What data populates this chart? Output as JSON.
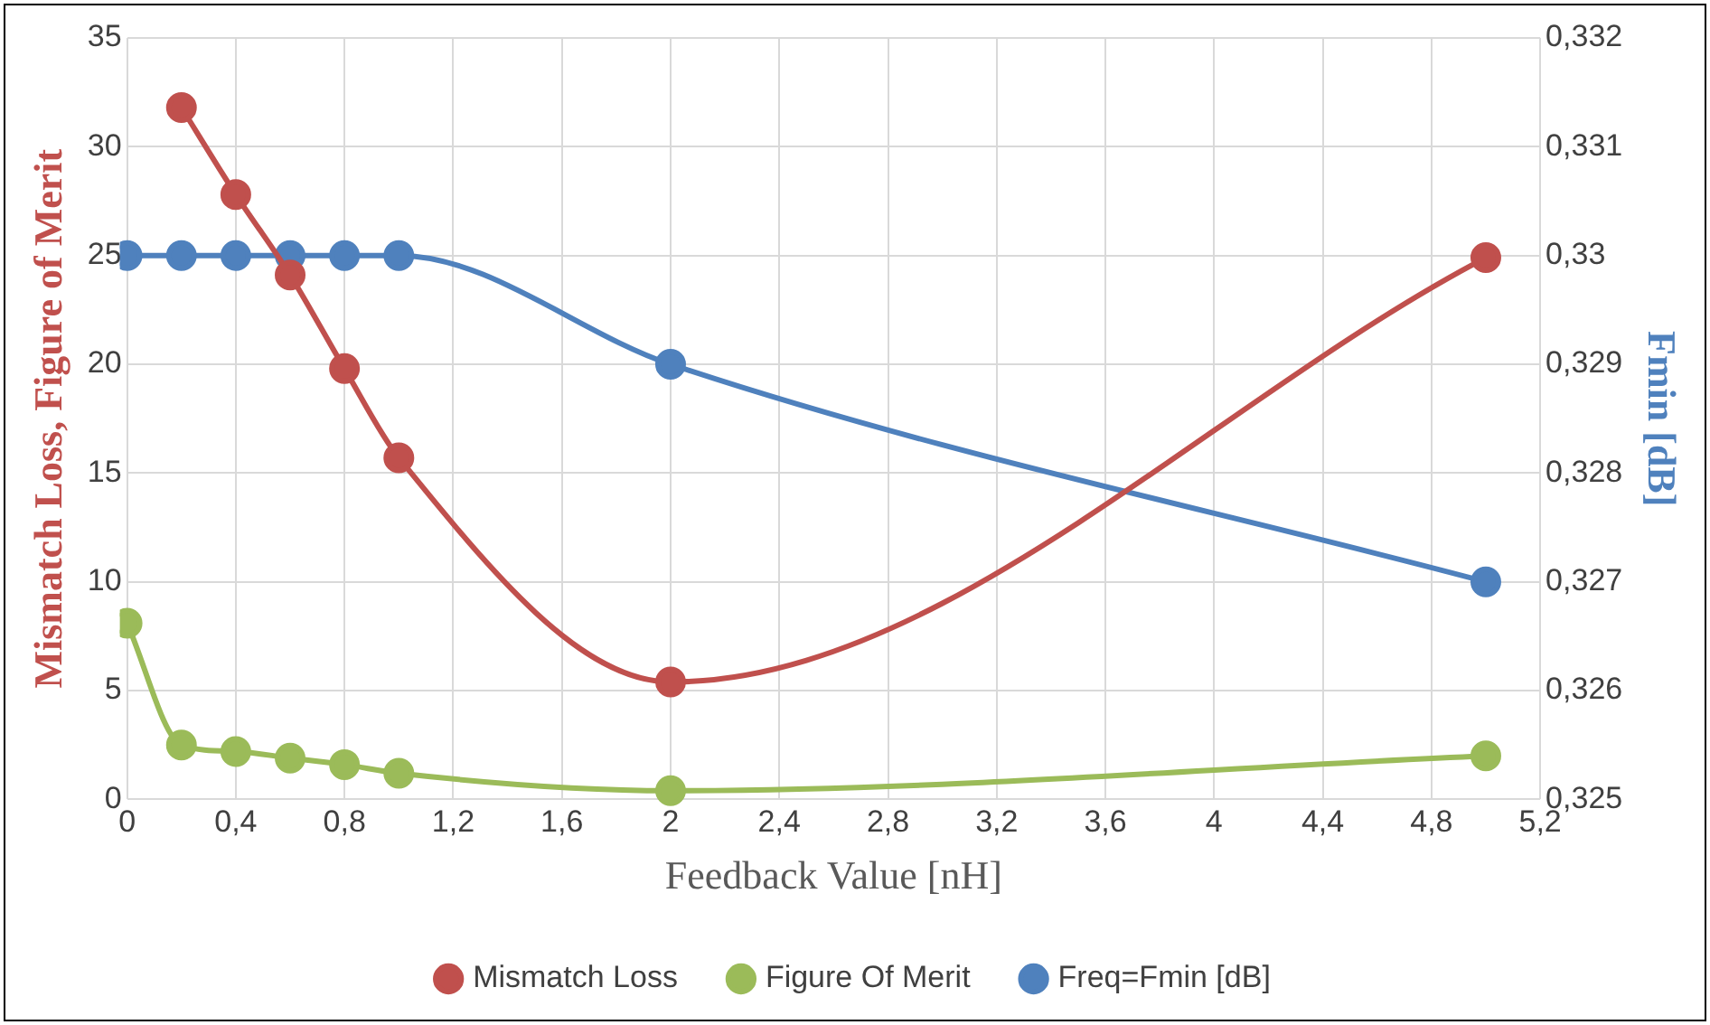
{
  "chart_data": {
    "type": "line",
    "xlabel": "Feedback Value [nH]",
    "ylabel": "Mismatch Loss, Figure of Merit",
    "y2label": "Fmin [dB]",
    "xlim": [
      0,
      5.2
    ],
    "xticks": [
      0,
      {
        "value": 0.4,
        "label": "0,4"
      },
      {
        "value": 0.8,
        "label": "0,8"
      },
      {
        "value": 1.2,
        "label": "1,2"
      },
      {
        "value": 1.6,
        "label": "1,6"
      },
      2,
      {
        "value": 2.4,
        "label": "2,4"
      },
      {
        "value": 2.8,
        "label": "2,8"
      },
      {
        "value": 3.2,
        "label": "3,2"
      },
      {
        "value": 3.6,
        "label": "3,6"
      },
      4,
      {
        "value": 4.4,
        "label": "4,4"
      },
      {
        "value": 4.8,
        "label": "4,8"
      },
      {
        "value": 5.2,
        "label": "5,2"
      }
    ],
    "ylim": [
      0,
      35
    ],
    "yticks": [
      0,
      5,
      10,
      15,
      20,
      25,
      30,
      35
    ],
    "y2lim": [
      0.325,
      0.332
    ],
    "y2ticks": [
      {
        "value": 0.325,
        "label": "0,325"
      },
      {
        "value": 0.326,
        "label": "0,326"
      },
      {
        "value": 0.327,
        "label": "0,327"
      },
      {
        "value": 0.328,
        "label": "0,328"
      },
      {
        "value": 0.329,
        "label": "0,329"
      },
      {
        "value": 0.33,
        "label": "0,33"
      },
      {
        "value": 0.331,
        "label": "0,331"
      },
      {
        "value": 0.332,
        "label": "0,332"
      }
    ],
    "grid": true,
    "legend": "bottom",
    "marker": "circle",
    "line_style": "solid",
    "series": [
      {
        "name": "Mismatch Loss",
        "color": "#c0504d",
        "x": [
          0.2,
          0.4,
          0.6,
          0.8,
          1,
          2,
          5
        ],
        "values": [
          31.8,
          27.8,
          24.1,
          19.8,
          15.7,
          5.4,
          24.9
        ]
      },
      {
        "name": "Figure Of Merit",
        "color": "#9bbb59",
        "x": [
          0,
          0.2,
          0.4,
          0.6,
          0.8,
          1,
          2,
          5
        ],
        "values": [
          8.1,
          2.5,
          2.2,
          1.9,
          1.6,
          1.2,
          0.4,
          2.0
        ]
      },
      {
        "name": "Freq=Fmin [dB]",
        "color": "#4f81bd",
        "axis": "y2",
        "x": [
          0,
          0.2,
          0.4,
          0.6,
          0.8,
          1,
          2,
          5
        ],
        "values": [
          0.33,
          0.33,
          0.33,
          0.33,
          0.33,
          0.33,
          0.329,
          0.327
        ]
      }
    ]
  }
}
